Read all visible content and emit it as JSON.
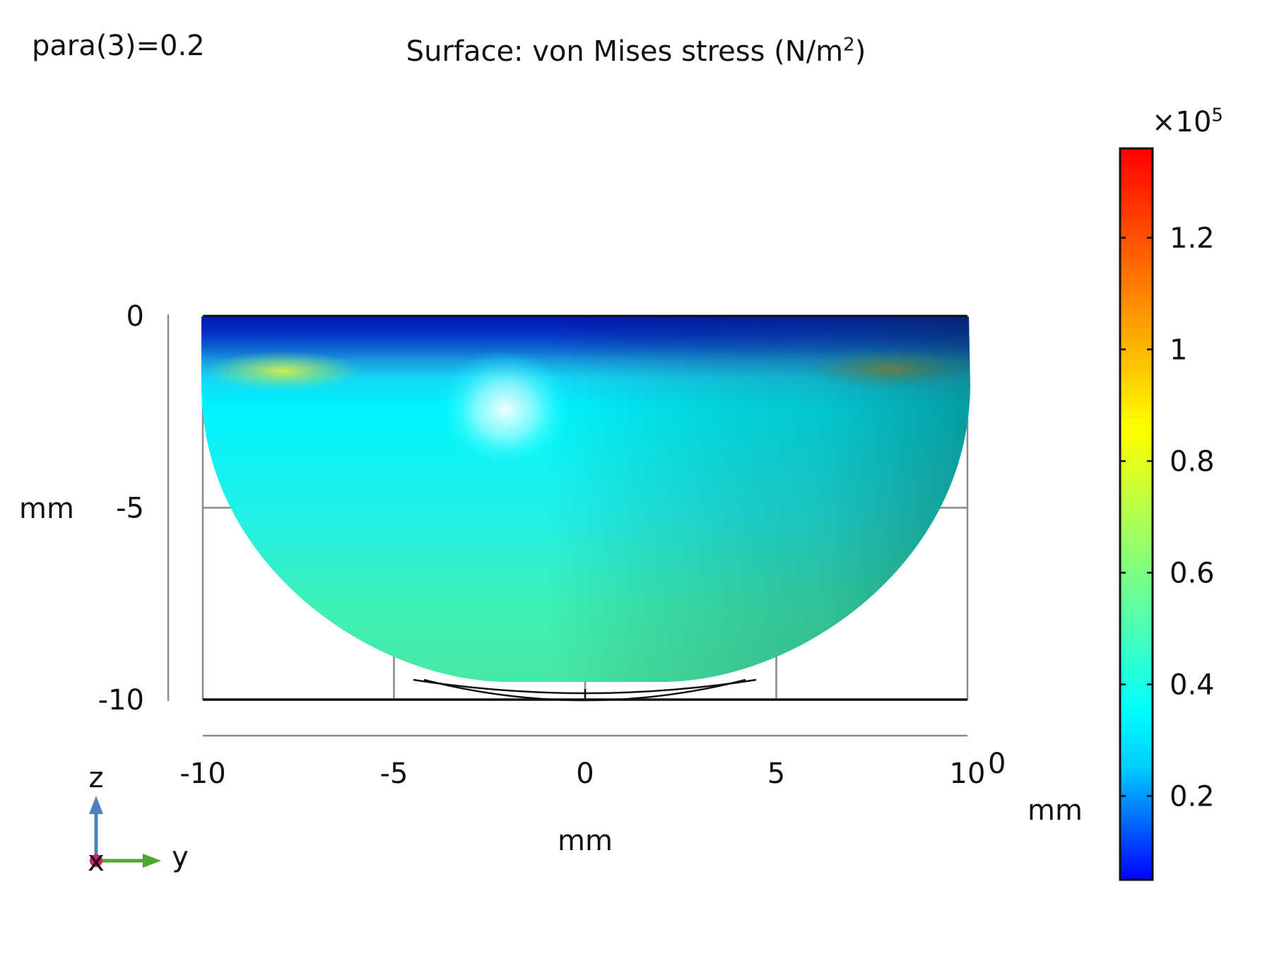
{
  "header": {
    "parameter_label": "para(3)=0.2",
    "title_text": "Surface: von Mises stress (N/m",
    "title_sup": "2",
    "title_end": ")"
  },
  "colorbar": {
    "multiplier_prefix": "×10",
    "multiplier_exp": "5",
    "ticks": [
      "1.2",
      "1",
      "0.8",
      "0.6",
      "0.4",
      "0.2"
    ],
    "tick_values": [
      1.2,
      1.0,
      0.8,
      0.6,
      0.4,
      0.2
    ],
    "range": [
      0.05,
      1.36
    ],
    "stops": [
      "#0000ff",
      "#0066ff",
      "#00ccff",
      "#00ffff",
      "#33ffcc",
      "#66ff99",
      "#99ff66",
      "#ccff33",
      "#ffff00",
      "#ffcc00",
      "#ff9900",
      "#ff6600",
      "#ff3300",
      "#ff0000"
    ]
  },
  "axes": {
    "x_ticks": [
      "-10",
      "-5",
      "0",
      "5",
      "10"
    ],
    "x_tick_values": [
      -10,
      -5,
      0,
      5,
      10
    ],
    "y_ticks": [
      "0",
      "-5",
      "-10"
    ],
    "y_tick_values": [
      0,
      -5,
      -10
    ],
    "x_unit": "mm",
    "y_unit": "mm",
    "corner_zero": "0",
    "third_axis_unit": "mm"
  },
  "triad": {
    "z_label": "z",
    "y_label": "y",
    "x_label": "x",
    "z_color": "#4f81bd",
    "y_color": "#4ea72e",
    "x_color": "#d81b60"
  },
  "chart_data": {
    "type": "heatmap",
    "title": "Surface: von Mises stress (N/m2)",
    "xlabel": "mm",
    "ylabel": "mm",
    "xlim": [
      -10,
      10
    ],
    "ylim": [
      -10,
      0
    ],
    "colorbar_range": [
      0.05,
      1.36
    ],
    "colorbar_multiplier": "×10^5",
    "shape": "hemispherical bowl, radius ≈ 9.5 mm, viewed along x",
    "observed_values_x1e5": [
      {
        "y": -8,
        "z": -1.4,
        "value": 0.85
      },
      {
        "y": 8,
        "z": -1.4,
        "value": 0.75
      },
      {
        "y": -2,
        "z": -2.5,
        "value": 0.45
      },
      {
        "y": 0,
        "z": 0,
        "value": 0.15
      },
      {
        "y": 0,
        "z": -6,
        "value": 0.45
      },
      {
        "y": 8,
        "z": -6,
        "value": 0.6
      },
      {
        "y": -8,
        "z": -6,
        "value": 0.6
      }
    ],
    "grid": true
  }
}
